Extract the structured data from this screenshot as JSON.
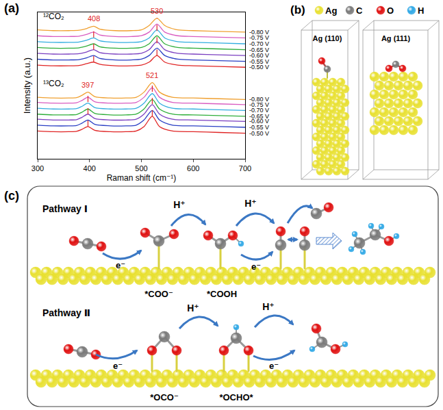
{
  "chart_data": {
    "type": "line",
    "panel_label": "(a)",
    "xlabel": "Raman shift (cm⁻¹)",
    "ylabel": "Intensity (a.u.)",
    "xlim": [
      300,
      700
    ],
    "xticks": [
      300,
      400,
      500,
      600,
      700
    ],
    "ylim": [
      0,
      20
    ],
    "tick_labels": "x",
    "grid": false,
    "groups": [
      {
        "name": "¹²CO₂",
        "peaks": [
          408,
          530
        ],
        "x": [
          300,
          330,
          360,
          380,
          395,
          408,
          420,
          450,
          480,
          500,
          515,
          530,
          545,
          570,
          600,
          650,
          700
        ],
        "series": [
          {
            "name": "-0.50 V",
            "color": "#e02424",
            "values": [
              12.8,
              12.7,
              12.7,
              12.75,
              13.0,
              13.2,
              12.9,
              12.7,
              12.7,
              12.8,
              13.2,
              14.1,
              13.2,
              12.8,
              12.7,
              12.6,
              12.5
            ]
          },
          {
            "name": "-0.55 V",
            "color": "#2a3fc4",
            "values": [
              13.6,
              13.5,
              13.5,
              13.55,
              13.8,
              14.1,
              13.7,
              13.5,
              13.5,
              13.6,
              14.1,
              15.1,
              14.1,
              13.6,
              13.5,
              13.4,
              13.3
            ]
          },
          {
            "name": "-0.60 V",
            "color": "#7b3fc0",
            "values": [
              14.4,
              14.3,
              14.3,
              14.35,
              14.6,
              14.9,
              14.5,
              14.3,
              14.3,
              14.4,
              14.9,
              16.0,
              14.9,
              14.4,
              14.3,
              14.2,
              14.1
            ]
          },
          {
            "name": "-0.65 V",
            "color": "#2fae3a",
            "values": [
              15.2,
              15.1,
              15.1,
              15.15,
              15.4,
              15.7,
              15.3,
              15.1,
              15.1,
              15.2,
              15.7,
              16.8,
              15.7,
              15.2,
              15.1,
              15.0,
              14.9
            ]
          },
          {
            "name": "-0.70 V",
            "color": "#33aee0",
            "values": [
              16.0,
              15.9,
              15.9,
              15.95,
              16.2,
              16.5,
              16.1,
              15.9,
              15.9,
              16.0,
              16.5,
              17.6,
              16.5,
              16.0,
              15.9,
              15.8,
              15.7
            ]
          },
          {
            "name": "-0.75 V",
            "color": "#d95cc0",
            "values": [
              16.8,
              16.7,
              16.7,
              16.75,
              17.0,
              17.3,
              16.9,
              16.7,
              16.7,
              16.8,
              17.3,
              18.4,
              17.3,
              16.8,
              16.7,
              16.6,
              16.5
            ]
          },
          {
            "name": "-0.80 V",
            "color": "#f0a030",
            "values": [
              17.6,
              17.5,
              17.5,
              17.55,
              17.8,
              18.1,
              17.7,
              17.5,
              17.5,
              17.6,
              18.2,
              19.2,
              18.2,
              17.6,
              17.5,
              17.4,
              17.3
            ]
          }
        ]
      },
      {
        "name": "¹³CO₂",
        "peaks": [
          397,
          521
        ],
        "x": [
          300,
          330,
          360,
          375,
          385,
          397,
          410,
          440,
          470,
          490,
          505,
          521,
          535,
          560,
          600,
          650,
          700
        ],
        "series": [
          {
            "name": "-0.50 V",
            "color": "#e02424",
            "values": [
              3.8,
              3.7,
              3.7,
              3.75,
              4.0,
              4.4,
              3.9,
              3.7,
              3.7,
              3.8,
              4.4,
              5.8,
              4.4,
              3.8,
              3.7,
              3.6,
              3.5
            ]
          },
          {
            "name": "-0.55 V",
            "color": "#2a3fc4",
            "values": [
              4.6,
              4.5,
              4.5,
              4.55,
              4.85,
              5.3,
              4.7,
              4.5,
              4.5,
              4.6,
              5.3,
              6.6,
              5.3,
              4.6,
              4.5,
              4.4,
              4.3
            ]
          },
          {
            "name": "-0.60 V",
            "color": "#7b3fc0",
            "values": [
              5.4,
              5.3,
              5.3,
              5.35,
              5.65,
              6.1,
              5.5,
              5.3,
              5.3,
              5.4,
              6.1,
              7.4,
              6.1,
              5.4,
              5.3,
              5.2,
              5.1
            ]
          },
          {
            "name": "-0.65 V",
            "color": "#2fae3a",
            "values": [
              6.1,
              6.0,
              6.0,
              6.05,
              6.35,
              6.8,
              6.2,
              6.0,
              6.0,
              6.1,
              6.8,
              8.1,
              6.8,
              6.1,
              6.0,
              5.9,
              5.8
            ]
          },
          {
            "name": "-0.70 V",
            "color": "#33aee0",
            "values": [
              6.9,
              6.8,
              6.8,
              6.85,
              7.15,
              7.6,
              7.0,
              6.8,
              6.8,
              6.9,
              7.6,
              8.9,
              7.6,
              6.9,
              6.8,
              6.7,
              6.6
            ]
          },
          {
            "name": "-0.75 V",
            "color": "#d95cc0",
            "values": [
              7.7,
              7.6,
              7.6,
              7.65,
              7.95,
              8.4,
              7.8,
              7.6,
              7.6,
              7.7,
              8.4,
              9.7,
              8.4,
              7.7,
              7.6,
              7.5,
              7.4
            ]
          },
          {
            "name": "-0.80 V",
            "color": "#f0a030",
            "values": [
              8.4,
              8.3,
              8.3,
              8.35,
              8.65,
              9.1,
              8.5,
              8.3,
              8.3,
              8.4,
              9.1,
              10.4,
              9.1,
              8.4,
              8.3,
              8.2,
              8.1
            ]
          }
        ]
      }
    ]
  },
  "diagram": {
    "panel_b": {
      "label": "(b)",
      "legend": [
        {
          "name": "Ag",
          "color": "#e8e030"
        },
        {
          "name": "C",
          "color": "#7a7a7a"
        },
        {
          "name": "O",
          "color": "#e01010"
        },
        {
          "name": "H",
          "color": "#2fa8e6"
        }
      ],
      "slabs": [
        "Ag (110)",
        "Ag (111)"
      ]
    },
    "panel_c": {
      "label": "(c)",
      "pathways": [
        {
          "name": "Pathway Ⅰ",
          "arrows": [
            "e⁻",
            "H⁺",
            "H⁺",
            "e⁻"
          ],
          "intermediates": [
            "*COO⁻",
            "*COOH"
          ]
        },
        {
          "name": "Pathway Ⅱ",
          "arrows": [
            "e⁻",
            "H⁺",
            "H⁺",
            "e⁻"
          ],
          "intermediates": [
            "*OCO⁻",
            "*OCHO*"
          ]
        }
      ]
    }
  }
}
